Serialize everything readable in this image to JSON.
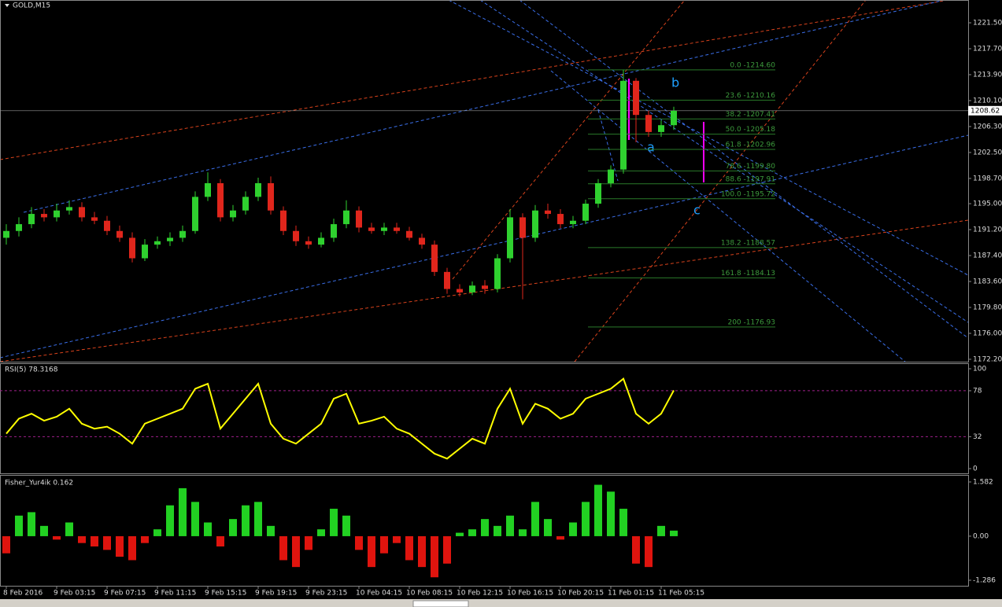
{
  "chart_data": [
    {
      "type": "candlestick",
      "title": "GOLD,M15",
      "up_color": "#2fd12f",
      "down_color": "#e0261c",
      "last_price": 1208.62,
      "categories": [
        "8 Feb 2016",
        null,
        null,
        null,
        "9 Feb 03:15",
        null,
        null,
        null,
        "9 Feb 07:15",
        null,
        null,
        null,
        "9 Feb 11:15",
        null,
        null,
        null,
        "9 Feb 15:15",
        null,
        null,
        null,
        "9 Feb 19:15",
        null,
        null,
        null,
        "9 Feb 23:15",
        null,
        null,
        null,
        "10 Feb 04:15",
        null,
        null,
        null,
        "10 Feb 08:15",
        null,
        null,
        null,
        "10 Feb 12:15",
        null,
        null,
        null,
        "10 Feb 16:15",
        null,
        null,
        null,
        "10 Feb 20:15",
        null,
        null,
        null,
        "11 Feb 01:15",
        null,
        null,
        null,
        "11 Feb 05:15",
        null
      ],
      "open": [
        1190,
        1191,
        1192,
        1193.5,
        1193,
        1194,
        1194.5,
        1193,
        1192.5,
        1191,
        1190,
        1187,
        1189,
        1189.5,
        1190,
        1191,
        1196,
        1198,
        1193,
        1194,
        1196,
        1198,
        1194,
        1191,
        1189.5,
        1189,
        1190,
        1192,
        1194,
        1191.5,
        1191,
        1191.5,
        1191,
        1190,
        1189,
        1185,
        1182.5,
        1182,
        1183,
        1182.5,
        1187,
        1193,
        1190,
        1194,
        1193.5,
        1192,
        1192.5,
        1195,
        1198,
        1200,
        1213,
        1208,
        1205.5,
        1206.5
      ],
      "high": [
        1192,
        1193,
        1194.5,
        1194.2,
        1195,
        1195.5,
        1195.2,
        1193.8,
        1193.2,
        1191.8,
        1190.8,
        1189.8,
        1190.2,
        1190.8,
        1191.8,
        1196.8,
        1199.6,
        1198.6,
        1194.8,
        1196.8,
        1198.8,
        1199,
        1194.6,
        1191.8,
        1190.2,
        1190.8,
        1192.8,
        1195.5,
        1194.6,
        1192.2,
        1192.2,
        1192.2,
        1191.6,
        1190.6,
        1189.6,
        1185.6,
        1183.2,
        1183.6,
        1183.8,
        1187.6,
        1194.2,
        1193.6,
        1194.8,
        1195,
        1194.2,
        1193.2,
        1195.6,
        1198.6,
        1200.6,
        1214.6,
        1213.4,
        1208.6,
        1207.2,
        1209.2
      ],
      "low": [
        1189,
        1190.2,
        1191.4,
        1192.4,
        1192.4,
        1193.4,
        1192.4,
        1192,
        1190.4,
        1189.4,
        1186.4,
        1186.6,
        1188.4,
        1188.8,
        1189.4,
        1190.6,
        1195.4,
        1192.4,
        1192.4,
        1193.4,
        1195.4,
        1193.4,
        1190.4,
        1188.8,
        1188.4,
        1188.6,
        1189.4,
        1191.4,
        1190.8,
        1190.6,
        1190.4,
        1190.6,
        1189.6,
        1188.4,
        1184.4,
        1181.8,
        1181.4,
        1181.6,
        1181.8,
        1182,
        1186.4,
        1181,
        1189.4,
        1192.8,
        1191.4,
        1191.4,
        1192,
        1194.4,
        1197.4,
        1199.4,
        1204,
        1204.8,
        1204.8,
        1205.8
      ],
      "close": [
        1191,
        1192,
        1193.5,
        1193,
        1194,
        1194.5,
        1193,
        1192.5,
        1191,
        1190,
        1187,
        1189,
        1189.5,
        1190,
        1191,
        1196,
        1198,
        1193,
        1194,
        1196,
        1198,
        1194,
        1191,
        1189.5,
        1189,
        1190,
        1192,
        1194,
        1191.5,
        1191,
        1191.5,
        1191,
        1190,
        1189,
        1185,
        1182.5,
        1182,
        1183,
        1182.5,
        1187,
        1193,
        1190,
        1194,
        1193.5,
        1192,
        1192.5,
        1195,
        1198,
        1200,
        1213,
        1208,
        1205.5,
        1206.5,
        1208.6
      ],
      "ylim": [
        1171.85,
        1224.84
      ],
      "yticks": [
        {
          "value": 1172.2,
          "label": "1172.20"
        },
        {
          "value": 1176,
          "label": "1176.00"
        },
        {
          "value": 1179.8,
          "label": "1179.80"
        },
        {
          "value": 1183.6,
          "label": "1183.60"
        },
        {
          "value": 1187.4,
          "label": "1187.40"
        },
        {
          "value": 1191.2,
          "label": "1191.20"
        },
        {
          "value": 1195,
          "label": "1195.00"
        },
        {
          "value": 1198.7,
          "label": "1198.70"
        },
        {
          "value": 1202.5,
          "label": "1202.50"
        },
        {
          "value": 1206.3,
          "label": "1206.30"
        },
        {
          "value": 1210.1,
          "label": "1210.10"
        },
        {
          "value": 1213.9,
          "label": "1213.90"
        },
        {
          "value": 1217.7,
          "label": "1217.70"
        },
        {
          "value": 1221.5,
          "label": "1221.50"
        }
      ],
      "fib": [
        {
          "price": 1214.6,
          "label": "0.0 -1214.60"
        },
        {
          "price": 1210.16,
          "label": "23.6 -1210.16"
        },
        {
          "price": 1207.41,
          "label": "38.2 -1207.41"
        },
        {
          "price": 1205.18,
          "label": "50.0 -1205.18"
        },
        {
          "price": 1202.96,
          "label": "61.8 -1202.96"
        },
        {
          "price": 1199.8,
          "label": "78.6 -1199.80"
        },
        {
          "price": 1197.91,
          "label": "88.6 -1197.91"
        },
        {
          "price": 1195.72,
          "label": "100.0 -1195.72"
        },
        {
          "price": 1188.57,
          "label": "138.2 -1188.57"
        },
        {
          "price": 1184.13,
          "label": "161.8 -1184.13"
        },
        {
          "price": 1176.93,
          "label": "200 -1176.93"
        }
      ],
      "wave_labels": [
        "a",
        "b",
        "c"
      ]
    },
    {
      "type": "line",
      "title": "RSI(5) 78.3168",
      "color": "#ffff00",
      "levels": [
        32,
        78
      ],
      "level_color": "#a0208a",
      "values": [
        35,
        50,
        55,
        48,
        52,
        60,
        45,
        40,
        42,
        35,
        25,
        45,
        50,
        55,
        60,
        80,
        85,
        40,
        55,
        70,
        85,
        45,
        30,
        25,
        35,
        45,
        70,
        75,
        45,
        48,
        52,
        40,
        35,
        25,
        15,
        10,
        20,
        30,
        25,
        60,
        80,
        45,
        65,
        60,
        50,
        55,
        70,
        75,
        80,
        90,
        55,
        45,
        55,
        78.3168
      ],
      "ylim": [
        -5.5,
        105.5
      ],
      "yticks": [
        0,
        32,
        78,
        100
      ]
    },
    {
      "type": "histogram",
      "title": "Fisher_Yur4ik 0.162",
      "up_color": "#22d122",
      "down_color": "#e0140e",
      "values": [
        -0.5,
        0.6,
        0.7,
        0.3,
        -0.1,
        0.4,
        -0.2,
        -0.3,
        -0.4,
        -0.6,
        -0.7,
        -0.2,
        0.2,
        0.9,
        1.4,
        1.0,
        0.4,
        -0.3,
        0.5,
        0.9,
        1.0,
        0.3,
        -0.7,
        -0.9,
        -0.4,
        0.2,
        0.8,
        0.6,
        -0.4,
        -0.9,
        -0.5,
        -0.2,
        -0.7,
        -0.9,
        -1.2,
        -0.8,
        0.1,
        0.2,
        0.5,
        0.3,
        0.6,
        0.2,
        1.0,
        0.5,
        -0.1,
        0.4,
        1.0,
        1.5,
        1.3,
        0.8,
        -0.8,
        -0.9,
        0.3,
        0.162
      ],
      "ylim": [
        -1.447,
        1.765
      ],
      "yticks": [
        1.582,
        {
          "value": 0,
          "label": "0.00"
        },
        -1.286
      ]
    }
  ]
}
